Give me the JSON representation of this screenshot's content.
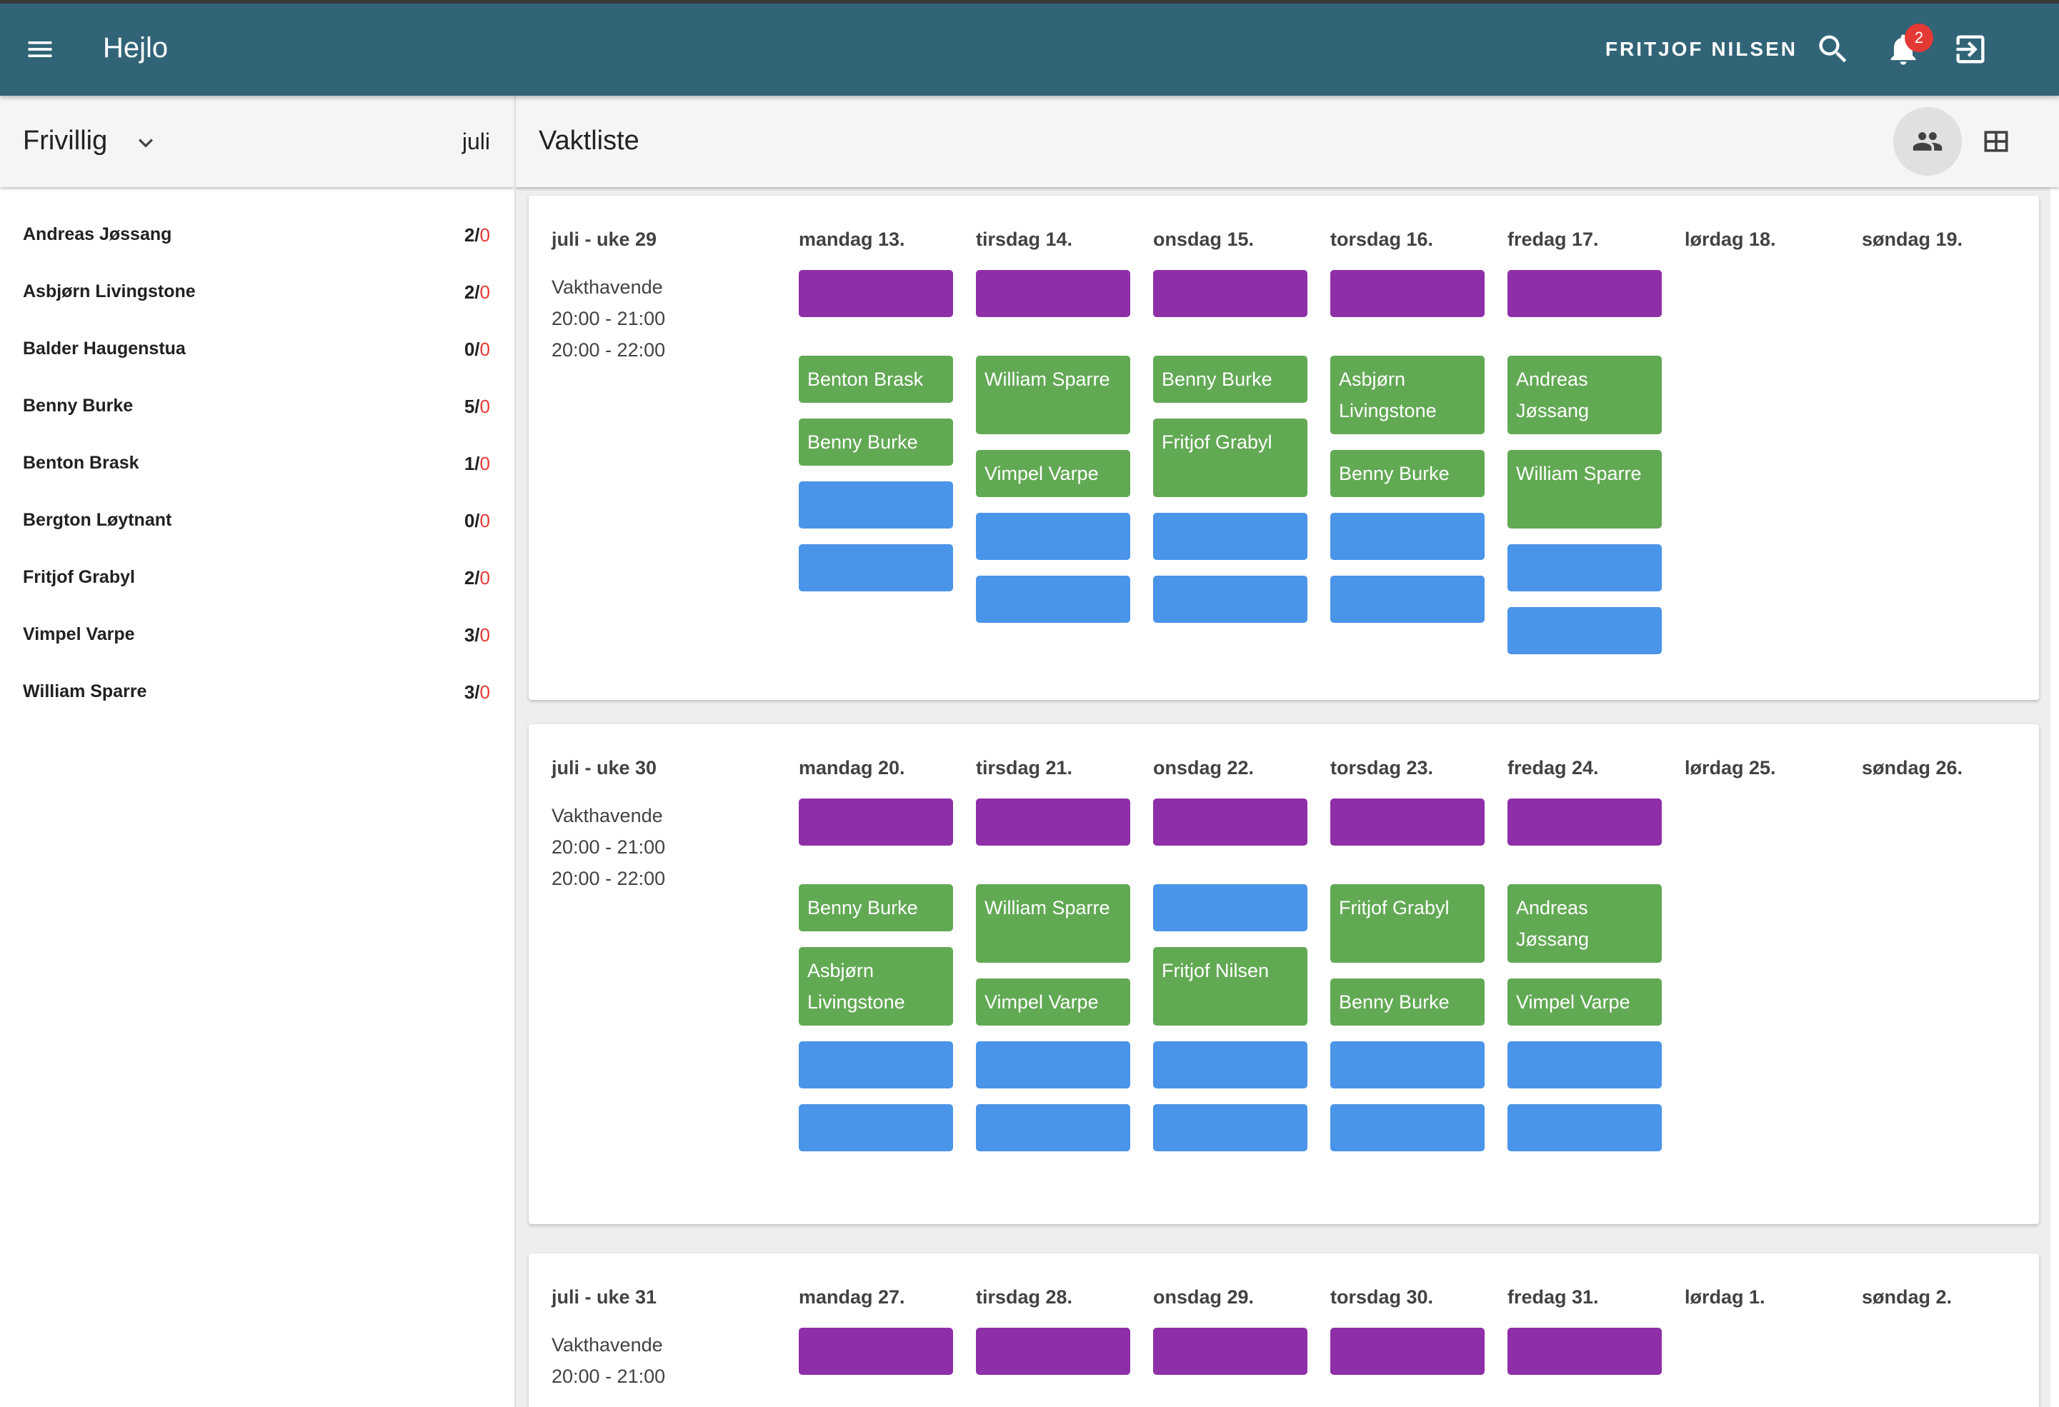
{
  "app": {
    "title": "Hejlo",
    "user": "FRITJOF NILSEN",
    "notification_count": "2",
    "icons": [
      "menu-icon",
      "search-icon",
      "bell-icon",
      "logout-icon"
    ]
  },
  "left_panel": {
    "label": "Frivillig",
    "month": "juli",
    "volunteers": [
      {
        "name": "Andreas Jøssang",
        "done": "2",
        "sep": "/",
        "zero": "0"
      },
      {
        "name": "Asbjørn Livingstone",
        "done": "2",
        "sep": "/",
        "zero": "0"
      },
      {
        "name": "Balder Haugenstua",
        "done": "0",
        "sep": "/",
        "zero": "0"
      },
      {
        "name": "Benny Burke",
        "done": "5",
        "sep": "/",
        "zero": "0"
      },
      {
        "name": "Benton Brask",
        "done": "1",
        "sep": "/",
        "zero": "0"
      },
      {
        "name": "Bergton Løytnant",
        "done": "0",
        "sep": "/",
        "zero": "0"
      },
      {
        "name": "Fritjof Grabyl",
        "done": "2",
        "sep": "/",
        "zero": "0"
      },
      {
        "name": "Vimpel Varpe",
        "done": "3",
        "sep": "/",
        "zero": "0"
      },
      {
        "name": "William Sparre",
        "done": "3",
        "sep": "/",
        "zero": "0"
      }
    ]
  },
  "right_panel": {
    "label": "Vaktliste"
  },
  "colors": {
    "appbar": "#316477",
    "purple": "#8e2fa8",
    "green": "#62a954",
    "blue": "#4a94e9",
    "red": "#e53935"
  },
  "weeks": [
    {
      "title": "juli - uke 29",
      "days": [
        "mandag 13.",
        "tirsdag 14.",
        "onsdag 15.",
        "torsdag 16.",
        "fredag 17.",
        "lørdag 18.",
        "søndag 19."
      ],
      "slot1": {
        "name": "Vakthavende",
        "time": "20:00 - 21:00"
      },
      "slot2": {
        "time": "20:00 - 22:00"
      },
      "columns": [
        {
          "assigned": [
            "Benton Brask",
            "Benny Burke"
          ],
          "open": 2
        },
        {
          "assigned": [
            "William Sparre",
            "Vimpel Varpe"
          ],
          "open": 2
        },
        {
          "assigned": [
            "Benny Burke",
            "Fritjof Grabyl"
          ],
          "open": 2
        },
        {
          "assigned": [
            "Asbjørn Livingstone",
            "Benny Burke"
          ],
          "open": 2
        },
        {
          "assigned": [
            "Andreas Jøssang",
            "William Sparre"
          ],
          "open": 2
        }
      ]
    },
    {
      "title": "juli - uke 30",
      "days": [
        "mandag 20.",
        "tirsdag 21.",
        "onsdag 22.",
        "torsdag 23.",
        "fredag 24.",
        "lørdag 25.",
        "søndag 26."
      ],
      "slot1": {
        "name": "Vakthavende",
        "time": "20:00 - 21:00"
      },
      "slot2": {
        "time": "20:00 - 22:00"
      },
      "columns": [
        {
          "assigned": [
            "Benny Burke",
            "Asbjørn Livingstone"
          ],
          "open": 2
        },
        {
          "assigned": [
            "William Sparre",
            "Vimpel Varpe"
          ],
          "open": 2
        },
        {
          "assigned": [
            "",
            "Fritjof Nilsen"
          ],
          "open": 2,
          "first_open": true
        },
        {
          "assigned": [
            "Fritjof Grabyl",
            "Benny Burke"
          ],
          "open": 2
        },
        {
          "assigned": [
            "Andreas Jøssang",
            "Vimpel Varpe"
          ],
          "open": 2
        }
      ]
    },
    {
      "title": "juli - uke 31",
      "days": [
        "mandag 27.",
        "tirsdag 28.",
        "onsdag 29.",
        "torsdag 30.",
        "fredag 31.",
        "lørdag 1.",
        "søndag 2."
      ],
      "slot1": {
        "name": "Vakthavende",
        "time": "20:00 - 21:00"
      },
      "columns": []
    }
  ]
}
